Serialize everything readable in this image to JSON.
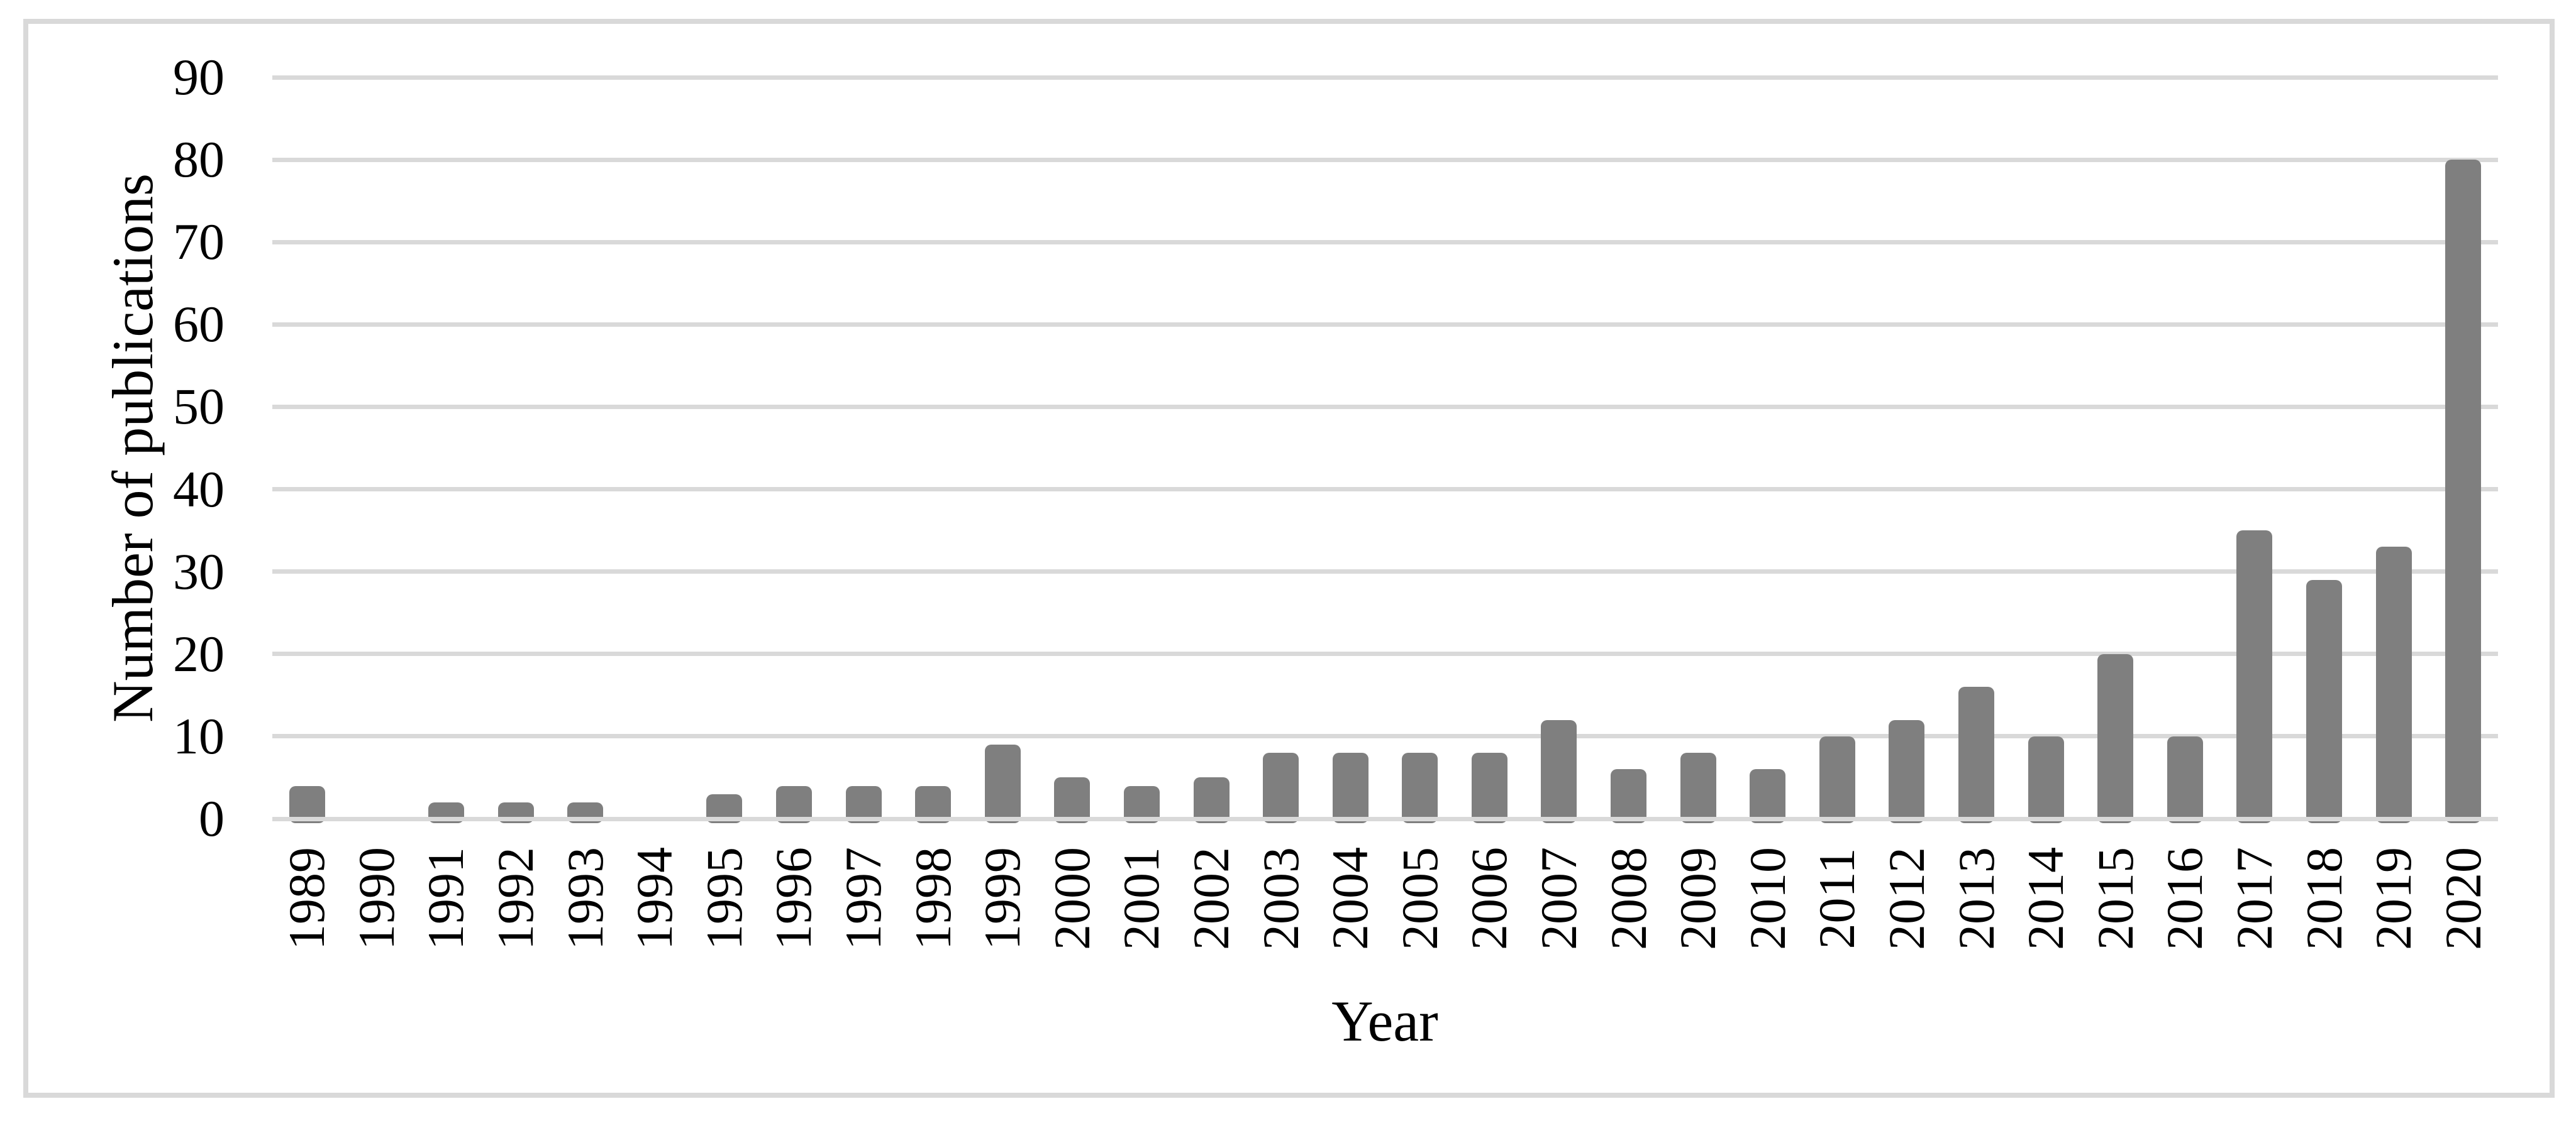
{
  "chart_data": {
    "type": "bar",
    "title": "",
    "xlabel": "Year",
    "ylabel": "Number of publications",
    "categories": [
      "1989",
      "1990",
      "1991",
      "1992",
      "1993",
      "1994",
      "1995",
      "1996",
      "1997",
      "1998",
      "1999",
      "2000",
      "2001",
      "2002",
      "2003",
      "2004",
      "2005",
      "2006",
      "2007",
      "2008",
      "2009",
      "2010",
      "2011",
      "2012",
      "2013",
      "2014",
      "2015",
      "2016",
      "2017",
      "2018",
      "2019",
      "2020"
    ],
    "values": [
      4,
      0,
      2,
      2,
      2,
      0,
      3,
      4,
      4,
      4,
      9,
      5,
      4,
      5,
      8,
      8,
      8,
      8,
      12,
      6,
      8,
      6,
      10,
      12,
      16,
      10,
      20,
      10,
      35,
      29,
      33,
      80
    ],
    "ylim": [
      0,
      90
    ],
    "yticks": [
      0,
      10,
      20,
      30,
      40,
      50,
      60,
      70,
      80,
      90
    ],
    "grid": true,
    "legend": "none",
    "bar_color": "#7f7f7f",
    "gridline_color": "#d9d9d9",
    "frame_color": "#d9d9d9",
    "text_color": "#000000",
    "background_color": "#ffffff"
  }
}
